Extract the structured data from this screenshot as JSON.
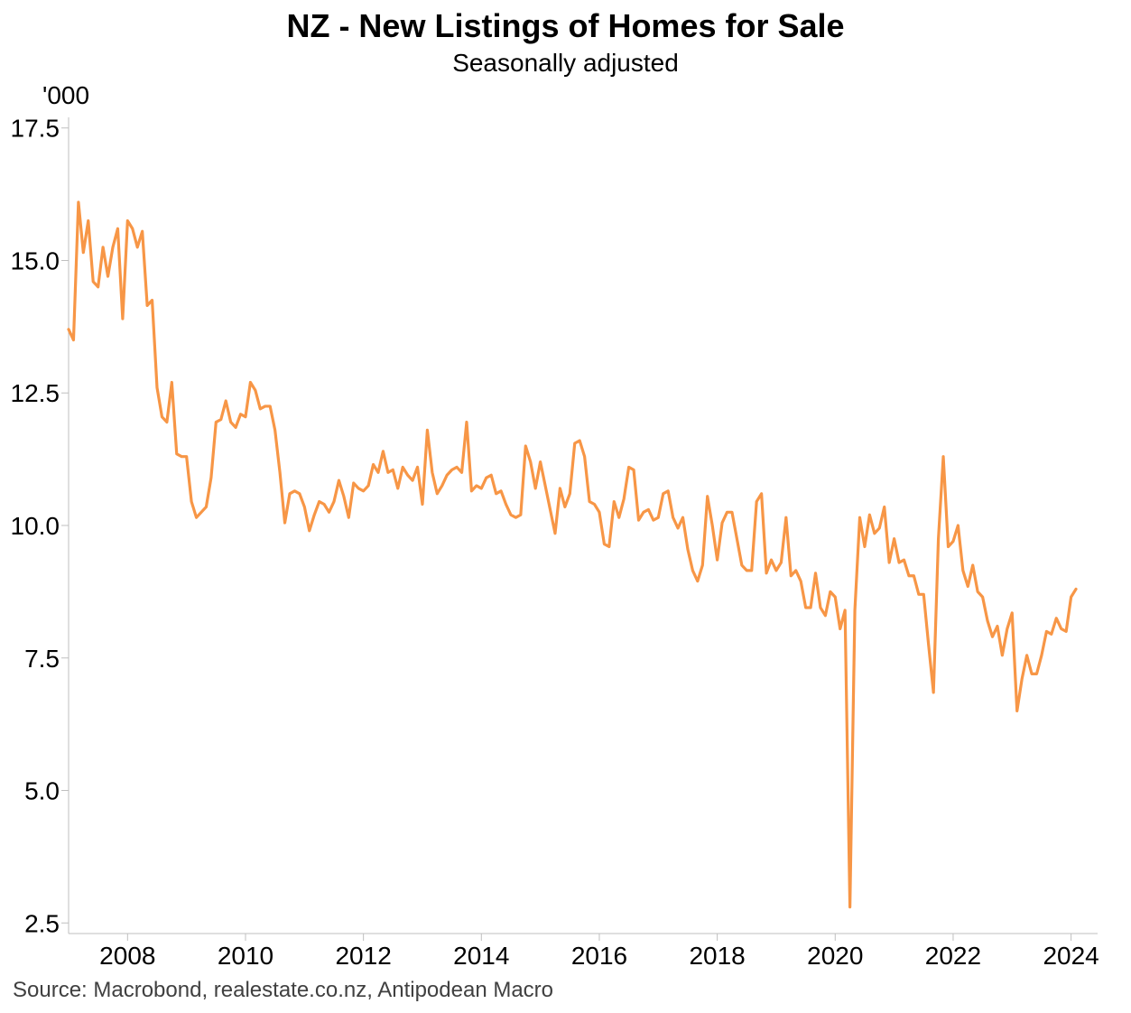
{
  "header": {
    "title": "NZ - New Listings of Homes for Sale",
    "subtitle": "Seasonally adjusted",
    "unit": "'000"
  },
  "footer": {
    "source": "Source: Macrobond, realestate.co.nz, Antipodean Macro"
  },
  "chart_data": {
    "type": "line",
    "title": "NZ - New Listings of Homes for Sale",
    "subtitle": "Seasonally adjusted",
    "ylabel": "'000",
    "xlabel": "",
    "xlim": [
      2007.0,
      2024.45
    ],
    "ylim": [
      2.3,
      17.7
    ],
    "x_ticks": [
      "2008",
      "2010",
      "2012",
      "2014",
      "2016",
      "2018",
      "2020",
      "2022",
      "2024"
    ],
    "y_ticks": [
      "2.5",
      "5.0",
      "7.5",
      "10.0",
      "12.5",
      "15.0",
      "17.5"
    ],
    "grid": false,
    "legend": "none",
    "line_color": "#F79646",
    "series": [
      {
        "start": "2007-01",
        "frequency": "monthly",
        "values": [
          13.7,
          13.5,
          16.1,
          15.15,
          15.75,
          14.6,
          14.5,
          15.25,
          14.7,
          15.25,
          15.6,
          13.9,
          15.75,
          15.6,
          15.25,
          15.55,
          14.15,
          14.25,
          12.6,
          12.05,
          11.95,
          12.7,
          11.35,
          11.3,
          11.3,
          10.45,
          10.15,
          10.25,
          10.35,
          10.9,
          11.95,
          12.0,
          12.35,
          11.95,
          11.85,
          12.1,
          12.05,
          12.7,
          12.55,
          12.2,
          12.25,
          12.25,
          11.8,
          11.0,
          10.05,
          10.6,
          10.65,
          10.6,
          10.35,
          9.9,
          10.2,
          10.45,
          10.4,
          10.25,
          10.45,
          10.85,
          10.55,
          10.15,
          10.8,
          10.7,
          10.65,
          10.75,
          11.15,
          11.0,
          11.4,
          11.0,
          11.05,
          10.7,
          11.1,
          10.95,
          10.85,
          11.1,
          10.4,
          11.8,
          11.0,
          10.6,
          10.75,
          10.95,
          11.05,
          11.1,
          11.0,
          11.95,
          10.65,
          10.75,
          10.7,
          10.9,
          10.95,
          10.6,
          10.65,
          10.4,
          10.2,
          10.15,
          10.2,
          11.5,
          11.2,
          10.7,
          11.2,
          10.75,
          10.3,
          9.85,
          10.7,
          10.35,
          10.6,
          11.55,
          11.6,
          11.3,
          10.45,
          10.4,
          10.25,
          9.65,
          9.6,
          10.45,
          10.15,
          10.5,
          11.1,
          11.05,
          10.1,
          10.25,
          10.3,
          10.1,
          10.15,
          10.6,
          10.65,
          10.15,
          9.95,
          10.15,
          9.55,
          9.15,
          8.95,
          9.25,
          10.55,
          10.0,
          9.35,
          10.05,
          10.25,
          10.25,
          9.75,
          9.25,
          9.15,
          9.15,
          10.45,
          10.6,
          9.1,
          9.35,
          9.15,
          9.3,
          10.15,
          9.05,
          9.15,
          8.95,
          8.45,
          8.45,
          9.1,
          8.45,
          8.3,
          8.75,
          8.65,
          8.05,
          8.4,
          2.8,
          8.4,
          10.15,
          9.6,
          10.2,
          9.85,
          9.95,
          10.35,
          9.3,
          9.75,
          9.3,
          9.35,
          9.05,
          9.05,
          8.7,
          8.7,
          7.75,
          6.85,
          9.75,
          11.3,
          9.6,
          9.7,
          10.0,
          9.15,
          8.85,
          9.25,
          8.75,
          8.65,
          8.2,
          7.9,
          8.1,
          7.55,
          8.05,
          8.35,
          6.5,
          7.1,
          7.55,
          7.2,
          7.2,
          7.55,
          8.0,
          7.95,
          8.25,
          8.05,
          8.0,
          8.65,
          8.8
        ]
      }
    ]
  }
}
